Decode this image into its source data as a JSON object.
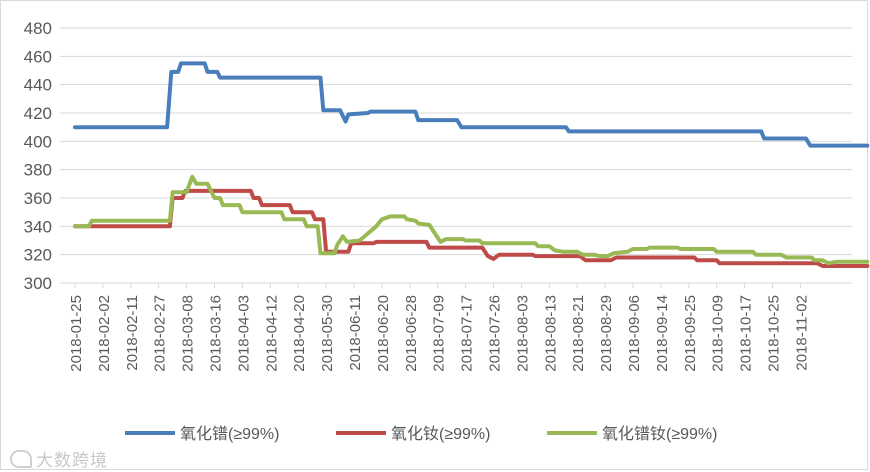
{
  "chart_data": {
    "type": "line",
    "title": "",
    "xlabel": "",
    "ylabel": "",
    "ylim": [
      300,
      480
    ],
    "yticks": [
      300,
      320,
      340,
      360,
      380,
      400,
      420,
      440,
      460,
      480
    ],
    "grid": "horizontal",
    "legend": "bottom",
    "categories": [
      "2018-01-25",
      "2018-02-02",
      "2018-02-11",
      "2018-02-27",
      "2018-03-08",
      "2018-03-16",
      "2018-04-03",
      "2018-04-12",
      "2018-04-20",
      "2018-05-30",
      "2018-06-11",
      "2018-06-20",
      "2018-06-28",
      "2018-07-09",
      "2018-07-17",
      "2018-07-26",
      "2018-08-03",
      "2018-08-13",
      "2018-08-21",
      "2018-08-29",
      "2018-09-06",
      "2018-09-14",
      "2018-09-25",
      "2018-10-09",
      "2018-10-17",
      "2018-10-25",
      "2018-11-02"
    ],
    "series": [
      {
        "name": "氧化镨(≥99%)",
        "color": "#4a7ebb",
        "points": [
          [
            0,
            410
          ],
          [
            3.3,
            410
          ],
          [
            3.45,
            449
          ],
          [
            3.7,
            449
          ],
          [
            3.8,
            455
          ],
          [
            4.65,
            455
          ],
          [
            4.75,
            449
          ],
          [
            5.1,
            449
          ],
          [
            5.2,
            445
          ],
          [
            8.8,
            445
          ],
          [
            8.9,
            422
          ],
          [
            9.5,
            422
          ],
          [
            9.7,
            414
          ],
          [
            9.8,
            419
          ],
          [
            10.5,
            420
          ],
          [
            10.6,
            421
          ],
          [
            12.2,
            421
          ],
          [
            12.3,
            415
          ],
          [
            13.7,
            415
          ],
          [
            13.85,
            410
          ],
          [
            17.6,
            410
          ],
          [
            17.7,
            407
          ],
          [
            24.6,
            407
          ],
          [
            24.7,
            402
          ],
          [
            26.2,
            402
          ],
          [
            26.35,
            397
          ],
          [
            28.4,
            397
          ]
        ]
      },
      {
        "name": "氧化钕(≥99%)",
        "color": "#be4b48",
        "points": [
          [
            0,
            340
          ],
          [
            3.4,
            340
          ],
          [
            3.5,
            360
          ],
          [
            3.85,
            360
          ],
          [
            3.95,
            365
          ],
          [
            6.3,
            365
          ],
          [
            6.4,
            360
          ],
          [
            6.6,
            360
          ],
          [
            6.7,
            355
          ],
          [
            7.7,
            355
          ],
          [
            7.8,
            350
          ],
          [
            8.5,
            350
          ],
          [
            8.6,
            345
          ],
          [
            8.9,
            345
          ],
          [
            9.0,
            322
          ],
          [
            9.8,
            322
          ],
          [
            9.9,
            328
          ],
          [
            10.7,
            328
          ],
          [
            10.8,
            329
          ],
          [
            12.6,
            329
          ],
          [
            12.7,
            325
          ],
          [
            14.6,
            325
          ],
          [
            14.8,
            319
          ],
          [
            15.0,
            317
          ],
          [
            15.2,
            320
          ],
          [
            16.4,
            320
          ],
          [
            16.5,
            319
          ],
          [
            18.1,
            319
          ],
          [
            18.3,
            316
          ],
          [
            19.2,
            316
          ],
          [
            19.4,
            318
          ],
          [
            22.2,
            318
          ],
          [
            22.3,
            316
          ],
          [
            23.0,
            316
          ],
          [
            23.1,
            314
          ],
          [
            26.6,
            314
          ],
          [
            26.8,
            312
          ],
          [
            28.4,
            312
          ]
        ]
      },
      {
        "name": "氧化镨钕(≥99%)",
        "color": "#98b954",
        "points": [
          [
            0,
            340
          ],
          [
            0.5,
            340
          ],
          [
            0.6,
            344
          ],
          [
            3.4,
            344
          ],
          [
            3.5,
            364
          ],
          [
            4.0,
            364
          ],
          [
            4.2,
            375
          ],
          [
            4.35,
            370
          ],
          [
            4.75,
            370
          ],
          [
            4.9,
            364
          ],
          [
            5.0,
            360
          ],
          [
            5.2,
            360
          ],
          [
            5.3,
            355
          ],
          [
            5.9,
            355
          ],
          [
            6.0,
            350
          ],
          [
            7.4,
            350
          ],
          [
            7.5,
            345
          ],
          [
            8.2,
            345
          ],
          [
            8.3,
            340
          ],
          [
            8.7,
            340
          ],
          [
            8.8,
            321
          ],
          [
            9.3,
            321
          ],
          [
            9.4,
            327
          ],
          [
            9.6,
            333
          ],
          [
            9.75,
            329
          ],
          [
            10.2,
            330
          ],
          [
            10.5,
            335
          ],
          [
            10.8,
            340
          ],
          [
            11.0,
            345
          ],
          [
            11.3,
            347
          ],
          [
            11.8,
            347
          ],
          [
            11.9,
            345
          ],
          [
            12.2,
            344
          ],
          [
            12.3,
            342
          ],
          [
            12.7,
            341
          ],
          [
            12.9,
            335
          ],
          [
            13.1,
            329
          ],
          [
            13.3,
            331
          ],
          [
            13.9,
            331
          ],
          [
            14.0,
            330
          ],
          [
            14.5,
            330
          ],
          [
            14.6,
            328
          ],
          [
            16.5,
            328
          ],
          [
            16.6,
            326
          ],
          [
            17.0,
            326
          ],
          [
            17.2,
            323
          ],
          [
            17.5,
            322
          ],
          [
            18.0,
            322
          ],
          [
            18.2,
            320
          ],
          [
            18.6,
            320
          ],
          [
            18.8,
            319
          ],
          [
            19.1,
            319
          ],
          [
            19.3,
            321
          ],
          [
            19.8,
            322
          ],
          [
            20.0,
            324
          ],
          [
            20.5,
            324
          ],
          [
            20.6,
            325
          ],
          [
            21.6,
            325
          ],
          [
            21.7,
            324
          ],
          [
            22.9,
            324
          ],
          [
            23.0,
            322
          ],
          [
            24.3,
            322
          ],
          [
            24.4,
            320
          ],
          [
            25.3,
            320
          ],
          [
            25.5,
            318
          ],
          [
            26.4,
            318
          ],
          [
            26.5,
            316
          ],
          [
            26.8,
            316
          ],
          [
            27.0,
            314
          ],
          [
            27.3,
            315
          ],
          [
            28.4,
            315
          ]
        ]
      }
    ]
  },
  "watermark": "大数跨境"
}
